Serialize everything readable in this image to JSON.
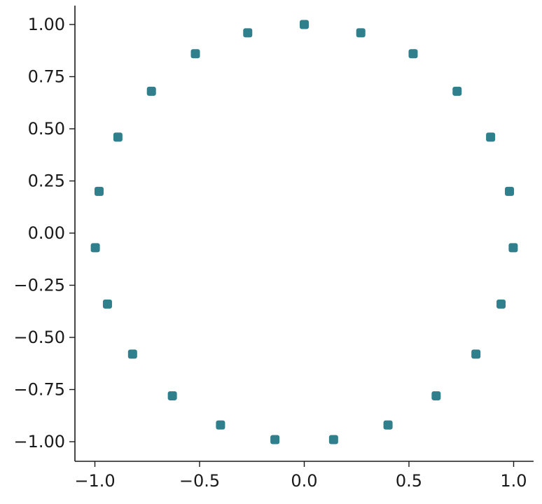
{
  "chart_data": {
    "type": "scatter",
    "title": "",
    "xlabel": "",
    "ylabel": "",
    "xlim": [
      -1.1,
      1.1
    ],
    "ylim": [
      -1.1,
      1.1
    ],
    "grid": false,
    "marker_color": "#2f7f8c",
    "x_ticks": [
      {
        "value": -1.0,
        "label": "−1.0"
      },
      {
        "value": -0.5,
        "label": "−0.5"
      },
      {
        "value": 0.0,
        "label": "0.0"
      },
      {
        "value": 0.5,
        "label": "0.5"
      },
      {
        "value": 1.0,
        "label": "1.0"
      }
    ],
    "y_ticks": [
      {
        "value": 1.0,
        "label": "1.00"
      },
      {
        "value": 0.75,
        "label": "0.75"
      },
      {
        "value": 0.5,
        "label": "0.50"
      },
      {
        "value": 0.25,
        "label": "0.25"
      },
      {
        "value": 0.0,
        "label": "0.00"
      },
      {
        "value": -0.25,
        "label": "−0.25"
      },
      {
        "value": -0.5,
        "label": "−0.50"
      },
      {
        "value": -0.75,
        "label": "−0.75"
      },
      {
        "value": -1.0,
        "label": "−1.00"
      }
    ],
    "series": [
      {
        "points": [
          {
            "x": 0.0,
            "y": 1.0
          },
          {
            "x": 0.27,
            "y": 0.96
          },
          {
            "x": 0.52,
            "y": 0.86
          },
          {
            "x": 0.73,
            "y": 0.68
          },
          {
            "x": 0.89,
            "y": 0.46
          },
          {
            "x": 0.98,
            "y": 0.2
          },
          {
            "x": 0.998,
            "y": -0.07
          },
          {
            "x": 0.94,
            "y": -0.34
          },
          {
            "x": 0.82,
            "y": -0.58
          },
          {
            "x": 0.63,
            "y": -0.78
          },
          {
            "x": 0.4,
            "y": -0.92
          },
          {
            "x": 0.14,
            "y": -0.99
          },
          {
            "x": -0.14,
            "y": -0.99
          },
          {
            "x": -0.4,
            "y": -0.92
          },
          {
            "x": -0.63,
            "y": -0.78
          },
          {
            "x": -0.82,
            "y": -0.58
          },
          {
            "x": -0.94,
            "y": -0.34
          },
          {
            "x": -0.998,
            "y": -0.07
          },
          {
            "x": -0.98,
            "y": 0.2
          },
          {
            "x": -0.89,
            "y": 0.46
          },
          {
            "x": -0.73,
            "y": 0.68
          },
          {
            "x": -0.52,
            "y": 0.86
          },
          {
            "x": -0.27,
            "y": 0.96
          }
        ]
      }
    ]
  }
}
